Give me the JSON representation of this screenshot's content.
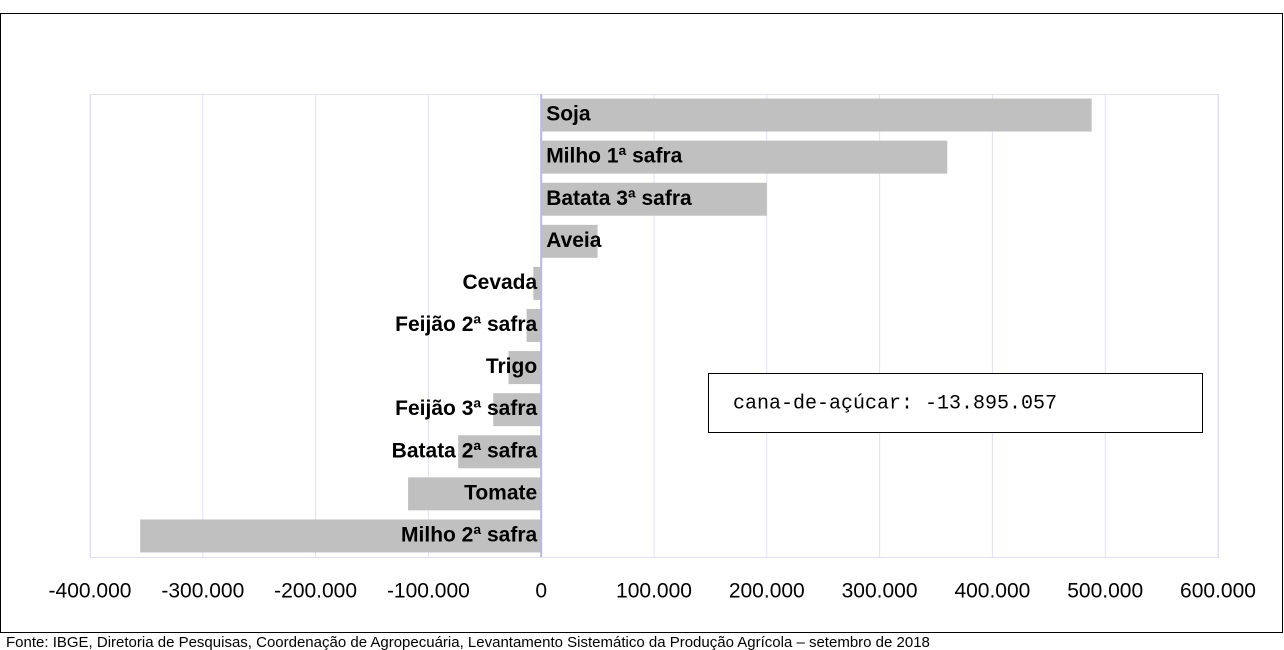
{
  "chart_data": {
    "type": "bar",
    "orientation": "horizontal",
    "categories": [
      "Soja",
      "Milho 1ª safra",
      "Batata 3ª safra",
      "Aveia",
      "Cevada",
      "Feijão 2ª safra",
      "Trigo",
      "Feijão 3ª safra",
      "Batata 2ª safra",
      "Tomate",
      "Milho 2ª safra"
    ],
    "values": [
      488000,
      360000,
      200000,
      50000,
      -7000,
      -13000,
      -29000,
      -42500,
      -73600,
      -118000,
      -355500
    ],
    "color": "#c0c0c0",
    "xlim": [
      -400000,
      600000
    ],
    "xticks": [
      {
        "value": -400000,
        "label": "-400.000"
      },
      {
        "value": -300000,
        "label": "-300.000"
      },
      {
        "value": -200000,
        "label": "-200.000"
      },
      {
        "value": -100000,
        "label": "-100.000"
      },
      0,
      {
        "value": 100000,
        "label": "100.000"
      },
      {
        "value": 200000,
        "label": "200.000"
      },
      {
        "value": 300000,
        "label": "300.000"
      },
      {
        "value": 400000,
        "label": "400.000"
      },
      {
        "value": 500000,
        "label": "500.000"
      },
      {
        "value": 600000,
        "label": "600.000"
      }
    ],
    "grid": true,
    "annotation": "cana-de-açúcar: -13.895.057",
    "source": "Fonte: IBGE, Diretoria de Pesquisas, Coordenação de Agropecuária, Levantamento Sistemático da Produção Agrícola – setembro de 2018"
  }
}
